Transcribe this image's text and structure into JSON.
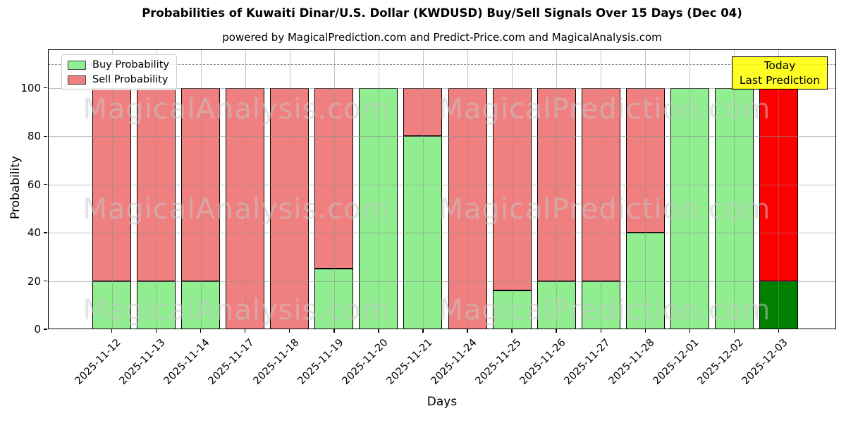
{
  "title": "Probabilities of Kuwaiti Dinar/U.S. Dollar (KWDUSD) Buy/Sell Signals Over 15 Days (Dec 04)",
  "subtitle": "powered by MagicalPrediction.com and Predict-Price.com and MagicalAnalysis.com",
  "axes": {
    "ylabel": "Probability",
    "xlabel": "Days",
    "yticks": [
      0,
      20,
      40,
      60,
      80,
      100
    ]
  },
  "legend": {
    "items": [
      {
        "label": "Buy Probability",
        "color": "#90ee90"
      },
      {
        "label": "Sell Probability",
        "color": "#f08080"
      }
    ]
  },
  "annotation": {
    "line1": "Today",
    "line2": "Last Prediction",
    "bg_color": "#ffff00",
    "dashed_line_y": 110
  },
  "watermarks": {
    "left": "MagicalAnalysis.com",
    "right": "MagicalPrediction.com"
  },
  "chart_data": {
    "type": "bar",
    "stacked": true,
    "title": "Probabilities of Kuwaiti Dinar/U.S. Dollar (KWDUSD) Buy/Sell Signals Over 15 Days (Dec 04)",
    "xlabel": "Days",
    "ylabel": "Probability",
    "ylim": [
      0,
      116
    ],
    "grid": true,
    "legend_position": "upper left",
    "categories": [
      "2025-11-12",
      "2025-11-13",
      "2025-11-14",
      "2025-11-17",
      "2025-11-18",
      "2025-11-19",
      "2025-11-20",
      "2025-11-21",
      "2025-11-24",
      "2025-11-25",
      "2025-11-26",
      "2025-11-27",
      "2025-11-28",
      "2025-12-01",
      "2025-12-02",
      "2025-12-03"
    ],
    "series": [
      {
        "name": "Buy Probability",
        "values": [
          20,
          20,
          20,
          0,
          0,
          25,
          100,
          80,
          0,
          16,
          20,
          20,
          40,
          100,
          100,
          20
        ]
      },
      {
        "name": "Sell Probability",
        "values": [
          80,
          80,
          80,
          100,
          100,
          75,
          0,
          20,
          100,
          84,
          80,
          80,
          60,
          0,
          0,
          80
        ]
      }
    ],
    "colors": {
      "buy": "#90ee90",
      "sell": "#f08080",
      "buy_last_bar": "#008000",
      "sell_last_bar": "#ff0000",
      "bar_edge": "#000000"
    }
  }
}
